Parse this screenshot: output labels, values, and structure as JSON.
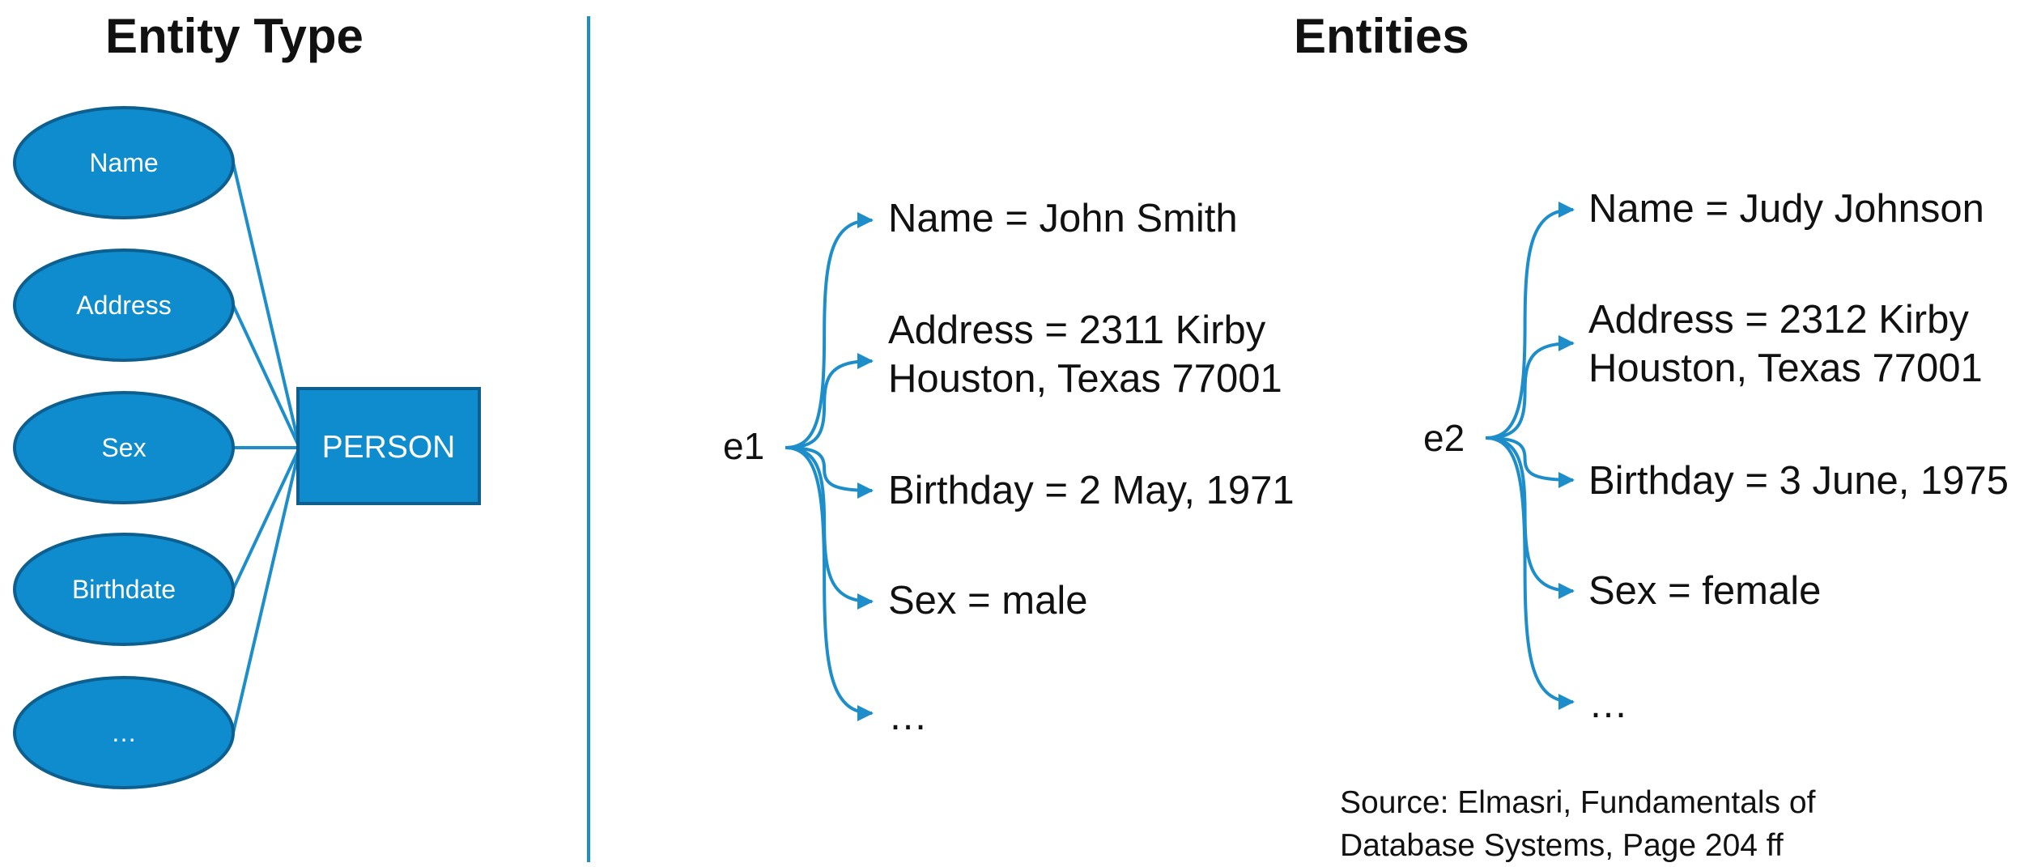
{
  "left_panel": {
    "heading": "Entity Type",
    "entity_box": "PERSON",
    "attributes": [
      "Name",
      "Address",
      "Sex",
      "Birthdate",
      "…"
    ]
  },
  "right_panel": {
    "heading": "Entities",
    "entities": [
      {
        "label": "e1",
        "values": [
          [
            "Name = John Smith"
          ],
          [
            "Address = 2311 Kirby",
            "Houston, Texas 77001"
          ],
          [
            "Birthday = 2 May, 1971"
          ],
          [
            "Sex = male"
          ],
          [
            "…"
          ]
        ]
      },
      {
        "label": "e2",
        "values": [
          [
            "Name = Judy Johnson"
          ],
          [
            "Address = 2312 Kirby",
            "Houston, Texas 77001"
          ],
          [
            "Birthday = 3 June, 1975"
          ],
          [
            "Sex = female"
          ],
          [
            "…"
          ]
        ]
      }
    ],
    "source": [
      "Source: Elmasri, Fundamentals of",
      "Database Systems, Page 204 ff"
    ]
  },
  "colors": {
    "fill": "#0f8ccd",
    "stroke": "#0c5f8f",
    "line": "#1e8ecb",
    "text": "#111111"
  }
}
